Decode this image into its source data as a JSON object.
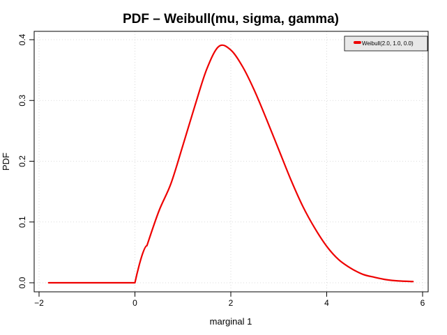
{
  "chart_data": {
    "type": "line",
    "title": "PDF – Weibull(mu, sigma, gamma)",
    "xlabel": "marginal 1",
    "ylabel": "PDF",
    "xlim": [
      -2,
      6
    ],
    "ylim": [
      0,
      0.4
    ],
    "x_ticks": [
      -2,
      0,
      2,
      4,
      6
    ],
    "x_tick_labels": [
      "−2",
      "0",
      "2",
      "4",
      "6"
    ],
    "y_ticks": [
      0.0,
      0.1,
      0.2,
      0.3,
      0.4
    ],
    "y_tick_labels": [
      "0.0",
      "0.1",
      "0.2",
      "0.3",
      "0.4"
    ],
    "grid": true,
    "legend_position": "top-right",
    "colors": {
      "series": "#ee0000",
      "grid": "#d0d0d0",
      "legend_bg": "#e8e8e8"
    },
    "series": [
      {
        "name": "Weibull(2.0, 1.0, 0.0)",
        "x": [
          -1.8,
          -1.0,
          -0.5,
          0.0,
          0.25,
          0.5,
          0.75,
          1.0,
          1.25,
          1.5,
          1.75,
          2.0,
          2.25,
          2.5,
          2.75,
          3.0,
          3.25,
          3.5,
          3.75,
          4.0,
          4.25,
          4.5,
          4.75,
          5.0,
          5.25,
          5.5,
          5.8
        ],
        "y": [
          0.0,
          0.0,
          0.0,
          0.0,
          0.061,
          0.118,
          0.163,
          0.226,
          0.291,
          0.352,
          0.389,
          0.383,
          0.355,
          0.315,
          0.268,
          0.219,
          0.17,
          0.126,
          0.09,
          0.06,
          0.038,
          0.024,
          0.014,
          0.009,
          0.005,
          0.003,
          0.002
        ]
      }
    ]
  }
}
